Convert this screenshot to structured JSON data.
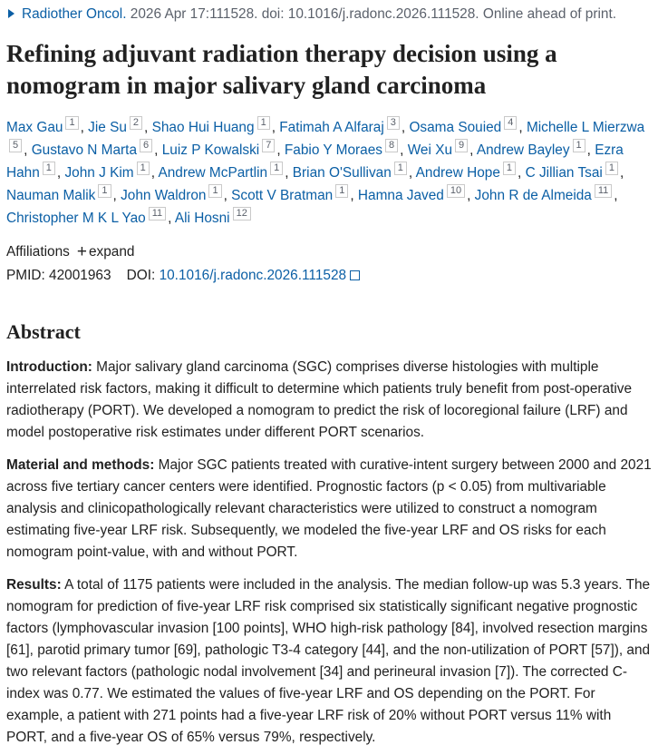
{
  "citation": {
    "journal": "Radiother Oncol.",
    "details": "2026 Apr 17:111528. doi: 10.1016/j.radonc.2026.111528. Online ahead of print."
  },
  "title": "Refining adjuvant radiation therapy decision using a nomogram in major salivary gland carcinoma",
  "authors": [
    {
      "name": "Max Gau",
      "aff": "1",
      "sep": ","
    },
    {
      "name": "Jie Su",
      "aff": "2",
      "sep": ","
    },
    {
      "name": "Shao Hui Huang",
      "aff": "1",
      "sep": ","
    },
    {
      "name": "Fatimah A Alfaraj",
      "aff": "3",
      "sep": ","
    },
    {
      "name": "Osama Souied",
      "aff": "4",
      "sep": ","
    },
    {
      "name": "Michelle L Mierzwa",
      "aff": "5",
      "sep": ","
    },
    {
      "name": "Gustavo N Marta",
      "aff": "6",
      "sep": ","
    },
    {
      "name": "Luiz P Kowalski",
      "aff": "7",
      "sep": ","
    },
    {
      "name": "Fabio Y Moraes",
      "aff": "8",
      "sep": ","
    },
    {
      "name": "Wei Xu",
      "aff": "9",
      "sep": ","
    },
    {
      "name": "Andrew Bayley",
      "aff": "1",
      "sep": ","
    },
    {
      "name": "Ezra Hahn",
      "aff": "1",
      "sep": ","
    },
    {
      "name": "John J Kim",
      "aff": "1",
      "sep": ","
    },
    {
      "name": "Andrew McPartlin",
      "aff": "1",
      "sep": ","
    },
    {
      "name": "Brian O'Sullivan",
      "aff": "1",
      "sep": ","
    },
    {
      "name": "Andrew Hope",
      "aff": "1",
      "sep": ","
    },
    {
      "name": "C Jillian Tsai",
      "aff": "1",
      "sep": ","
    },
    {
      "name": "Nauman Malik",
      "aff": "1",
      "sep": ","
    },
    {
      "name": "John Waldron",
      "aff": "1",
      "sep": ","
    },
    {
      "name": "Scott V Bratman",
      "aff": "1",
      "sep": ","
    },
    {
      "name": "Hamna Javed",
      "aff": "10",
      "sep": ","
    },
    {
      "name": "John R de Almeida",
      "aff": "11",
      "sep": ","
    },
    {
      "name": "Christopher M K L Yao",
      "aff": "11",
      "sep": ","
    },
    {
      "name": "Ali Hosni",
      "aff": "12"
    }
  ],
  "affiliations": {
    "label": "Affiliations",
    "toggle": "expand"
  },
  "identifiers": {
    "pmid_label": "PMID:",
    "pmid": "42001963",
    "doi_label": "DOI:",
    "doi": "10.1016/j.radonc.2026.111528"
  },
  "abstract": {
    "heading": "Abstract",
    "sections": [
      {
        "label": "Introduction:",
        "text": "Major salivary gland carcinoma (SGC) comprises diverse histologies with multiple interrelated risk factors, making it difficult to determine which patients truly benefit from post-operative radiotherapy (PORT). We developed a nomogram to predict the risk of locoregional failure (LRF) and model postoperative risk estimates under different PORT scenarios."
      },
      {
        "label": "Material and methods:",
        "text": "Major SGC patients treated with curative-intent surgery between 2000 and 2021 across five tertiary cancer centers were identified. Prognostic factors (p < 0.05) from multivariable analysis and clinicopathologically relevant characteristics were utilized to construct a nomogram estimating five-year LRF risk. Subsequently, we modeled the five-year LRF and OS risks for each nomogram point-value, with and without PORT."
      },
      {
        "label": "Results:",
        "text": "A total of 1175 patients were included in the analysis. The median follow-up was 5.3 years. The nomogram for prediction of five-year LRF risk comprised six statistically significant negative prognostic factors (lymphovascular invasion [100 points], WHO high-risk pathology [84], involved resection margins [61], parotid primary tumor [69], pathologic T3-4 category [44], and the non-utilization of PORT [57]), and two relevant factors (pathologic nodal involvement [34] and perineural invasion [7]). The corrected C-index was 0.77. We estimated the values of five-year LRF and OS depending on the PORT. For example, a patient with 271 points had a five-year LRF risk of 20% without PORT versus 11% with PORT, and a five-year OS of 65% versus 79%, respectively."
      }
    ]
  }
}
